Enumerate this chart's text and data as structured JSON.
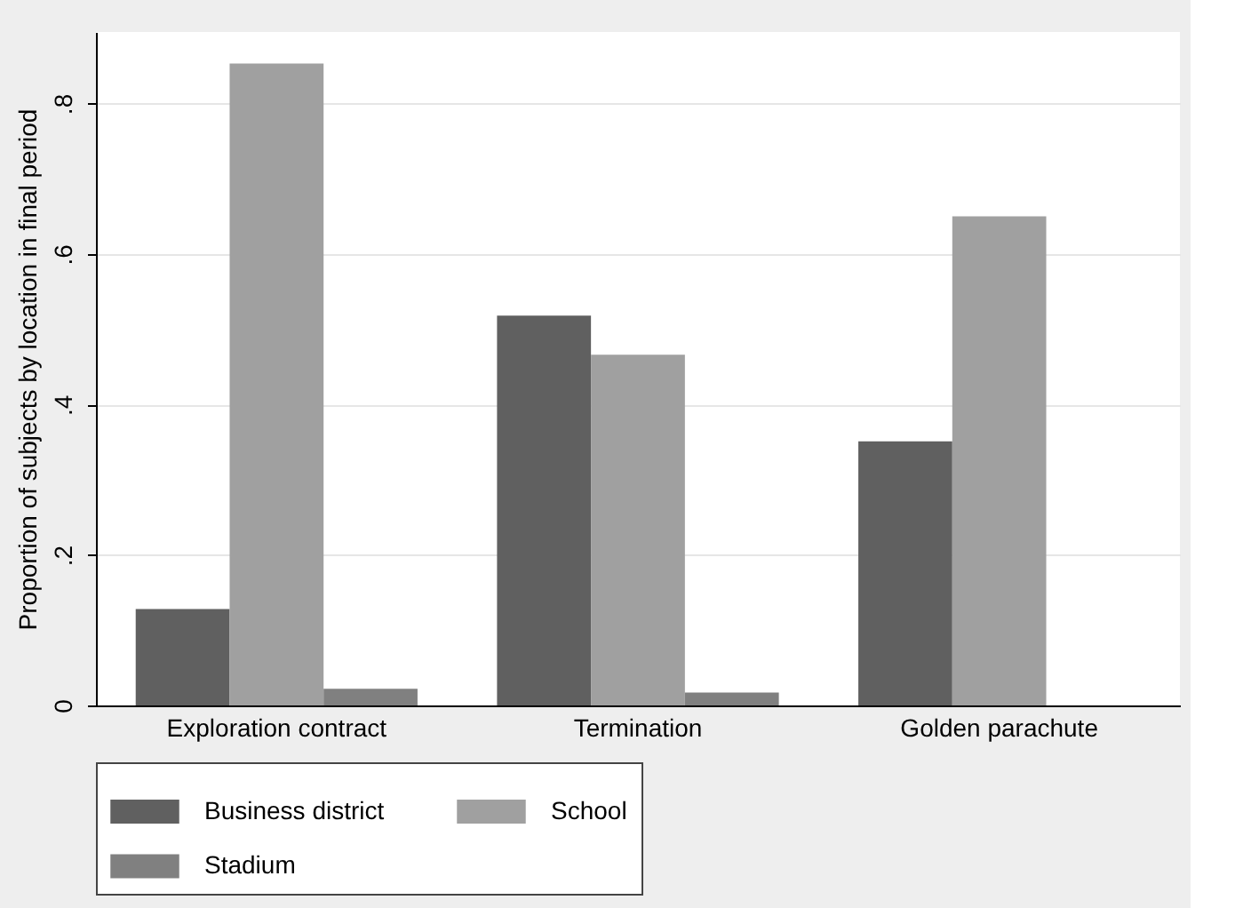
{
  "chart_data": {
    "type": "bar",
    "categories": [
      "Exploration contract",
      "Termination",
      "Golden parachute"
    ],
    "ylabel": "Proportion of subjects by location in final period",
    "series": [
      {
        "name": "Business district",
        "color": "#606060",
        "values": [
          0.128,
          0.518,
          0.351
        ]
      },
      {
        "name": "School",
        "color": "#a0a0a0",
        "values": [
          0.853,
          0.466,
          0.65
        ]
      },
      {
        "name": "Stadium",
        "color": "#808080",
        "values": [
          0.022,
          0.017,
          0
        ]
      }
    ],
    "ylim": [
      0,
      0.895
    ],
    "yticks": [
      0,
      {
        "value": 0.2,
        "label": ".2"
      },
      {
        "value": 0.4,
        "label": ".4"
      },
      {
        "value": 0.6,
        "label": ".6"
      },
      {
        "value": 0.8,
        "label": ".8"
      }
    ],
    "grid": "y",
    "legend": "bottom"
  }
}
